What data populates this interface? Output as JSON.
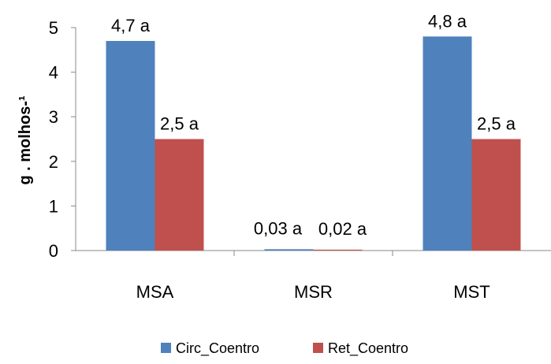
{
  "chart_data": {
    "type": "bar",
    "categories": [
      "MSA",
      "MSR",
      "MST"
    ],
    "series": [
      {
        "name": "Circ_Coentro",
        "color": "#4F81BD",
        "values": [
          4.7,
          0.03,
          4.8
        ],
        "labels": [
          "4,7 a",
          "0,03 a",
          "4,8 a"
        ]
      },
      {
        "name": "Ret_Coentro",
        "color": "#C0504D",
        "values": [
          2.5,
          0.02,
          2.5
        ],
        "labels": [
          "2,5 a",
          "0,02 a",
          "2,5 a"
        ]
      }
    ],
    "ylabel": "g . molhos-¹",
    "ylim": [
      0,
      5
    ],
    "yticks": [
      "0",
      "1",
      "2",
      "3",
      "4",
      "5"
    ],
    "grid": false,
    "legend_position": "bottom"
  }
}
